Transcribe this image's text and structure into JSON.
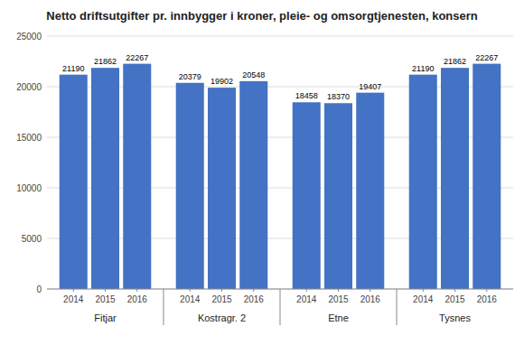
{
  "chart_data": {
    "type": "bar",
    "title": "Netto driftsutgifter pr. innbygger i kroner, pleie- og omsorgtjenesten, konsern",
    "categories": [
      "Fitjar",
      "Kostragr. 2",
      "Etne",
      "Tysnes"
    ],
    "series": [
      {
        "name": "2014",
        "values": [
          21190,
          20379,
          18458,
          21190
        ]
      },
      {
        "name": "2015",
        "values": [
          21862,
          19902,
          18370,
          21862
        ]
      },
      {
        "name": "2016",
        "values": [
          22267,
          20548,
          19407,
          22267
        ]
      }
    ],
    "color": "#4472C4",
    "ylim": [
      0,
      25000
    ],
    "yticks": [
      0,
      5000,
      10000,
      15000,
      20000,
      25000
    ],
    "grid": true,
    "data_labels": true
  }
}
